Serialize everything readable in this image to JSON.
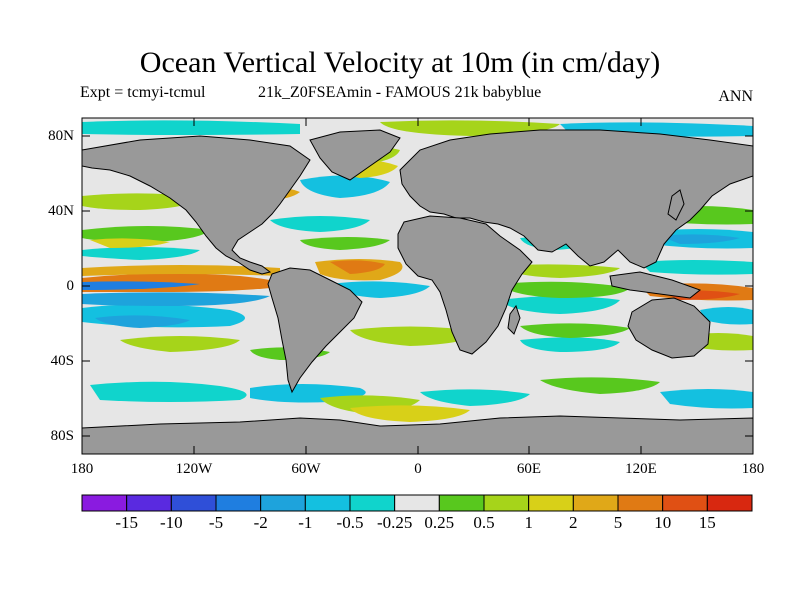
{
  "title": "Ocean Vertical Velocity at 10m (in cm/day)",
  "subtitle_left": "Expt = tcmyi-tcmul",
  "subtitle_center": "21k_Z0FSEAmin - FAMOUS 21k babyblue",
  "subtitle_right": "ANN",
  "y_ticks": [
    "80N",
    "40N",
    "0",
    "40S",
    "80S"
  ],
  "x_ticks": [
    "180",
    "120W",
    "60W",
    "0",
    "60E",
    "120E",
    "180"
  ],
  "colorbar": {
    "labels": [
      "-15",
      "-10",
      "-5",
      "-2",
      "-1",
      "-0.5",
      "-0.25",
      "0.25",
      "0.5",
      "1",
      "2",
      "5",
      "10",
      "15"
    ],
    "colors": [
      "#8a1be0",
      "#5a2ae0",
      "#2f4fd8",
      "#1f7ee0",
      "#1ea3dc",
      "#14c0e0",
      "#10d4cc",
      "#e6e6e6",
      "#58c81e",
      "#a6d41a",
      "#d8d018",
      "#e0a818",
      "#e07a14",
      "#e05014",
      "#d82810"
    ]
  },
  "colors": {
    "land": "#999999",
    "neutral_ocean": "#e6e6e6",
    "frame": "#000000"
  }
}
